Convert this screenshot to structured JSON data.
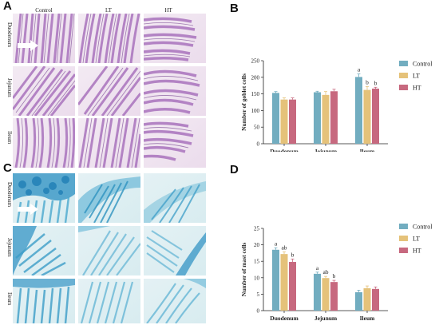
{
  "panels": {
    "A": {
      "label": "A",
      "columns": [
        "Control",
        "LT",
        "HT"
      ],
      "rows": [
        "Duodenum",
        "Jejunum",
        "Ileum"
      ]
    },
    "B": {
      "label": "B"
    },
    "C": {
      "label": "C",
      "rows": [
        "Duodenum",
        "Jejunum",
        "Ileum"
      ]
    },
    "D": {
      "label": "D"
    }
  },
  "colors": {
    "control": "#72adc0",
    "lt": "#e5c27a",
    "ht": "#c7697f",
    "pas": "#b68ac4",
    "alcian": "#4aa9cf"
  },
  "chart_data": [
    {
      "type": "bar",
      "ylabel": "Number of goblet cells",
      "ylim": [
        0,
        250
      ],
      "yticks": [
        "0",
        "50",
        "100",
        "150",
        "200",
        "250"
      ],
      "categories": [
        "Duodenum",
        "Jejunum",
        "Ileum"
      ],
      "series": [
        {
          "name": "Control",
          "values": [
            153,
            155,
            201
          ],
          "errors": [
            4,
            3,
            9
          ]
        },
        {
          "name": "LT",
          "values": [
            133,
            147,
            162
          ],
          "errors": [
            5,
            10,
            10
          ]
        },
        {
          "name": "HT",
          "values": [
            133,
            158,
            166
          ],
          "errors": [
            5,
            6,
            4
          ]
        }
      ],
      "annotations": [
        [
          "",
          "",
          "a"
        ],
        [
          "",
          "",
          "b"
        ],
        [
          "",
          "",
          "b"
        ]
      ],
      "legend": "right"
    },
    {
      "type": "bar",
      "ylabel": "Number of mast cells",
      "ylim": [
        0,
        25
      ],
      "yticks": [
        "0",
        "5",
        "10",
        "15",
        "20",
        "25"
      ],
      "categories": [
        "Duodenum",
        "Jejunum",
        "Ileum"
      ],
      "series": [
        {
          "name": "Control",
          "values": [
            18.5,
            11.2,
            5.6
          ],
          "errors": [
            0.6,
            0.5,
            0.6
          ]
        },
        {
          "name": "LT",
          "values": [
            17.2,
            9.9,
            6.8
          ],
          "errors": [
            0.7,
            0.5,
            0.7
          ]
        },
        {
          "name": "HT",
          "values": [
            14.8,
            8.7,
            6.6
          ],
          "errors": [
            0.9,
            0.5,
            0.6
          ]
        }
      ],
      "annotations": [
        [
          "a",
          "a",
          ""
        ],
        [
          "ab",
          "ab",
          ""
        ],
        [
          "b",
          "b",
          ""
        ]
      ],
      "legend": "right"
    }
  ]
}
